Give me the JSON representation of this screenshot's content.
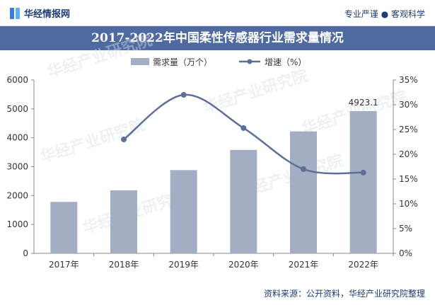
{
  "header": {
    "brand": "华经情报网",
    "slogan": "专业严谨 ● 客观科学",
    "logo_icon": "huajing-logo-icon"
  },
  "title": "2017-2022年中国柔性传感器行业需求量情况",
  "source": "资料来源：公开资料，华经产业研究院整理",
  "watermark": "华经产业研究院",
  "colors": {
    "bar": "#a3adc3",
    "line": "#5c6f94",
    "title_bg": "#4e6aa0"
  },
  "chart_data": {
    "type": "bar",
    "categories": [
      "2017年",
      "2018年",
      "2019年",
      "2020年",
      "2021年",
      "2022年"
    ],
    "series": [
      {
        "name": "需求量（万个）",
        "type": "bar",
        "axis": "left",
        "values": [
          1780,
          2180,
          2880,
          3580,
          4220,
          4923.1
        ]
      },
      {
        "name": "增速（%）",
        "type": "line",
        "axis": "right",
        "values": [
          null,
          23.0,
          32.0,
          25.3,
          17.0,
          16.3
        ]
      }
    ],
    "data_labels": [
      {
        "series": 0,
        "index": 5,
        "text": "4923.1"
      }
    ],
    "y_left": {
      "range": [
        0,
        6000
      ],
      "ticks": [
        "0",
        "1000",
        "2000",
        "3000",
        "4000",
        "5000",
        "6000"
      ]
    },
    "y_right": {
      "range": [
        0,
        35
      ],
      "ticks": [
        "0%",
        "5%",
        "10%",
        "15%",
        "20%",
        "25%",
        "30%",
        "35%"
      ]
    },
    "legend": "top-center",
    "grid": false
  }
}
